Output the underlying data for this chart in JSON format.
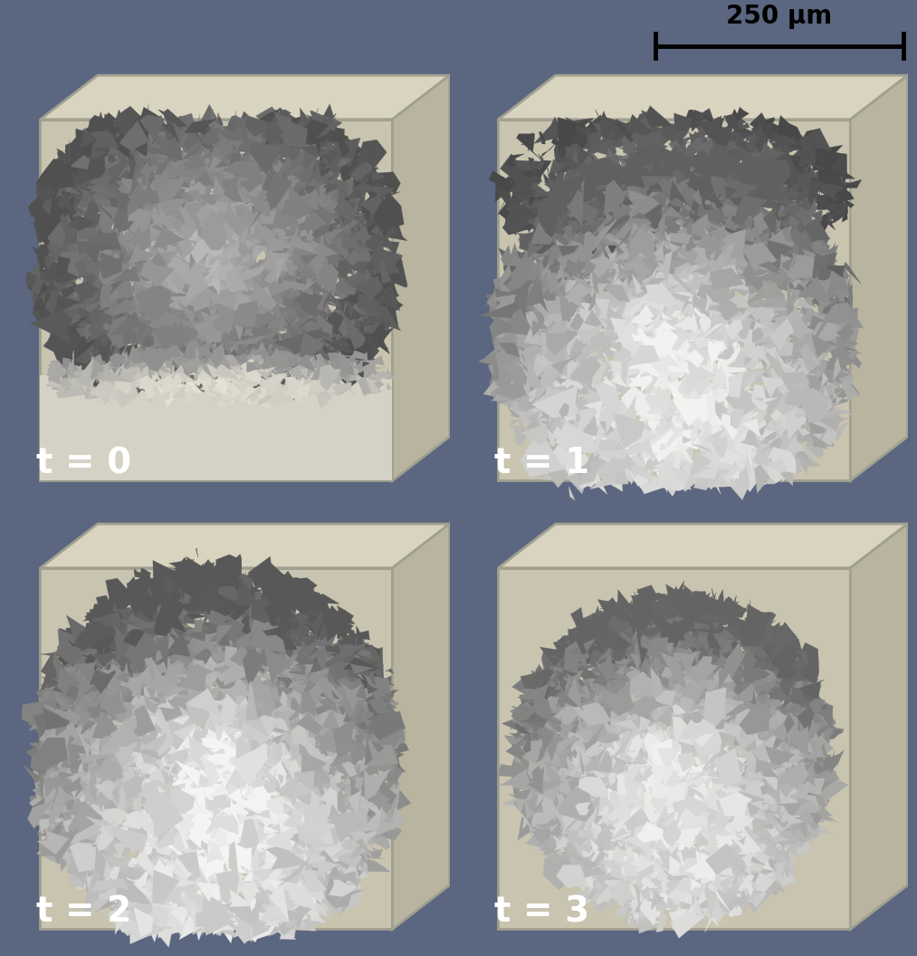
{
  "background_color": "#5b6680",
  "panel_bg": "#5b6680",
  "cube_face_light": "#c8c4b0",
  "cube_top_color": "#d8d4c0",
  "cube_right_color": "#b8b4a0",
  "cube_edge_color": "#a0a090",
  "label_color": "#ffffff",
  "label_fontsize": 28,
  "label_fontweight": "bold",
  "scalebar_text": "250 μm",
  "scalebar_fontsize": 20,
  "scalebar_fontweight": "bold",
  "time_labels": [
    "t = 0",
    "t = 1",
    "t = 2",
    "t = 3"
  ],
  "fig_width": 10.13,
  "fig_height": 10.55,
  "tissue_dark": "#606060",
  "tissue_mid": "#a0a0a0",
  "tissue_light": "#f0f0ee"
}
